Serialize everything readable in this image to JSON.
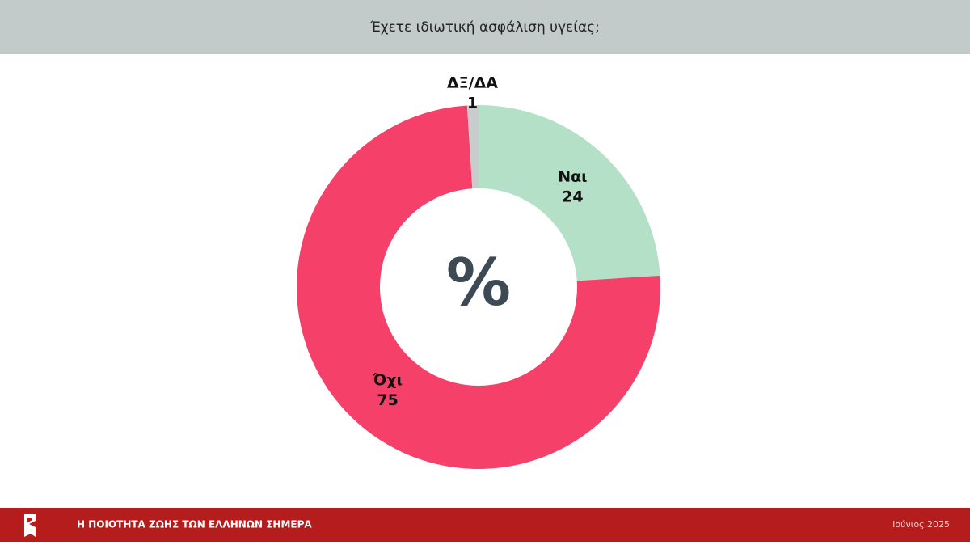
{
  "chart_data": {
    "type": "donut",
    "title": "Έχετε ιδιωτική ασφάλιση υγείας;",
    "center_label": "%",
    "categories": [
      "Ναι",
      "Όχι",
      "ΔΞ/ΔΑ"
    ],
    "values": [
      24,
      75,
      1
    ],
    "colors": [
      "#b3e0c6",
      "#f5406a",
      "#c9cccd"
    ]
  },
  "footer": {
    "title": "Η ΠΟΙΟΤΗΤΑ ΖΩΗΣ ΤΩΝ ΕΛΛΗΝΩΝ ΣΗΜΕΡΑ",
    "date": "Ιούνιος 2025"
  }
}
